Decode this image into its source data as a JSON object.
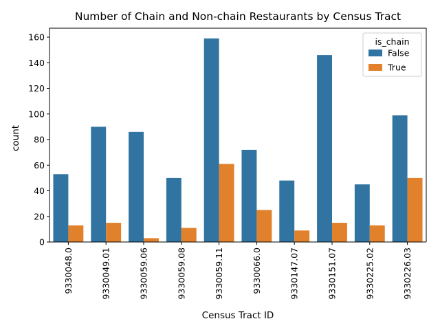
{
  "chart_data": {
    "type": "bar",
    "title": "Number of Chain and Non-chain Restaurants by Census Tract",
    "xlabel": "Census Tract ID",
    "ylabel": "count",
    "ylim": [
      0,
      167
    ],
    "yticks": [
      0,
      20,
      40,
      60,
      80,
      100,
      120,
      140,
      160
    ],
    "categories": [
      "9330048.0",
      "9330049.01",
      "9330059.06",
      "9330059.08",
      "9330059.11",
      "9330066.0",
      "9330147.07",
      "9330151.07",
      "9330225.02",
      "9330226.03"
    ],
    "series": [
      {
        "name": "False",
        "color": "#3274a1",
        "values": [
          53,
          90,
          86,
          50,
          159,
          72,
          48,
          146,
          45,
          99
        ]
      },
      {
        "name": "True",
        "color": "#e1812c",
        "values": [
          13,
          15,
          3,
          11,
          61,
          25,
          9,
          15,
          13,
          50
        ]
      }
    ],
    "legend": {
      "title": "is_chain",
      "placement": "top-right"
    },
    "grid": false
  }
}
